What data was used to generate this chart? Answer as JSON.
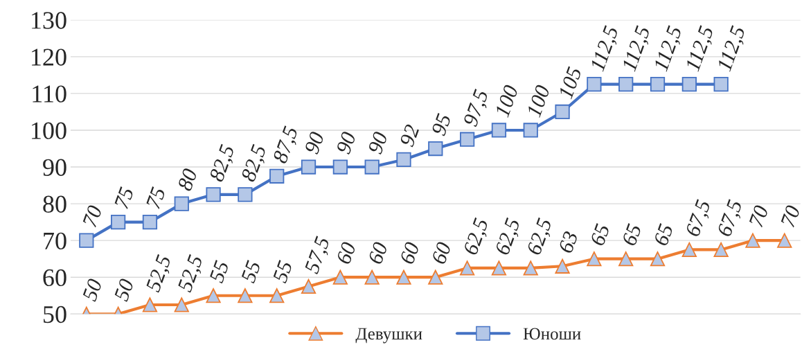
{
  "chart_data": {
    "type": "line",
    "categories": [
      null,
      null,
      null,
      null,
      null,
      null,
      null,
      null,
      null,
      null,
      null,
      null,
      null,
      null,
      null,
      null,
      null,
      null,
      null,
      null,
      null,
      null,
      null
    ],
    "series": [
      {
        "name": "Девушки",
        "color": "#ed7d31",
        "marker": "triangle",
        "values": [
          50,
          50,
          52.5,
          52.5,
          55,
          55,
          55,
          57.5,
          60,
          60,
          60,
          60,
          62.5,
          62.5,
          62.5,
          63,
          65,
          65,
          65,
          67.5,
          67.5,
          70,
          70
        ],
        "value_labels": [
          "50",
          "50",
          "52,5",
          "52,5",
          "55",
          "55",
          "55",
          "57,5",
          "60",
          "60",
          "60",
          "60",
          "62,5",
          "62,5",
          "62,5",
          "63",
          "65",
          "65",
          "65",
          "67,5",
          "67,5",
          "70",
          "70"
        ]
      },
      {
        "name": "Юноши",
        "color": "#4472c4",
        "marker": "square",
        "values": [
          70,
          75,
          75,
          80,
          82.5,
          82.5,
          87.5,
          90,
          90,
          90,
          92,
          95,
          97.5,
          100,
          100,
          105,
          112.5,
          112.5,
          112.5,
          112.5,
          112.5,
          null,
          null
        ],
        "value_labels": [
          "70",
          "75",
          "75",
          "80",
          "82,5",
          "82,5",
          "87,5",
          "90",
          "90",
          "90",
          "92",
          "95",
          "97,5",
          "100",
          "100",
          "105",
          "112,5",
          "112,5",
          "112,5",
          "112,5",
          "112,5",
          null,
          null
        ]
      }
    ],
    "ylim": [
      50,
      130
    ],
    "yticks": [
      50,
      60,
      70,
      80,
      90,
      100,
      110,
      120,
      130
    ],
    "grid": "y",
    "legend": "bottom",
    "line_style": "solid"
  }
}
